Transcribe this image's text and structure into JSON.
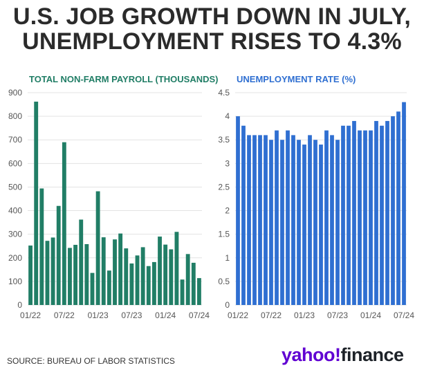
{
  "header": {
    "title_line1": "U.S. JOB GROWTH DOWN IN JULY,",
    "title_line2": "UNEMPLOYMENT RISES TO 4.3%"
  },
  "footer": {
    "source": "SOURCE: BUREAU OF LABOR STATISTICS",
    "logo_yahoo": "yahoo!",
    "logo_finance": "finance"
  },
  "colors": {
    "payroll_bar": "#217e66",
    "unemployment_bar": "#2f6fd1",
    "title": "#2b2b2b",
    "logo_purple": "#6001d2"
  },
  "chart_data": [
    {
      "type": "bar",
      "title": "TOTAL NON-FARM PAYROLL (THOUSANDS)",
      "xlabel": "",
      "ylabel": "",
      "ylim": [
        0,
        900
      ],
      "yticks": [
        "900",
        "800",
        "700",
        "600",
        "500",
        "400",
        "300",
        "200",
        "100",
        "0"
      ],
      "xtick_labels": [
        "01/22",
        "07/22",
        "01/23",
        "07/23",
        "01/24",
        "07/24"
      ],
      "grid": true,
      "categories": [
        "01/22",
        "02/22",
        "03/22",
        "04/22",
        "05/22",
        "06/22",
        "07/22",
        "08/22",
        "09/22",
        "10/22",
        "11/22",
        "12/22",
        "01/23",
        "02/23",
        "03/23",
        "04/23",
        "05/23",
        "06/23",
        "07/23",
        "08/23",
        "09/23",
        "10/23",
        "11/23",
        "12/23",
        "01/24",
        "02/24",
        "03/24",
        "04/24",
        "05/24",
        "06/24",
        "07/24"
      ],
      "values": [
        252,
        862,
        494,
        272,
        286,
        420,
        690,
        242,
        255,
        362,
        258,
        136,
        482,
        287,
        146,
        278,
        303,
        240,
        176,
        210,
        245,
        165,
        182,
        290,
        256,
        236,
        310,
        108,
        216,
        179,
        114
      ]
    },
    {
      "type": "bar",
      "title": "UNEMPLOYMENT RATE (%)",
      "xlabel": "",
      "ylabel": "",
      "ylim": [
        0,
        4.5
      ],
      "yticks": [
        "4.5",
        "4",
        "3.5",
        "3",
        "2.5",
        "2",
        "1.5",
        "1",
        "0.5",
        "0"
      ],
      "xtick_labels": [
        "01/22",
        "07/22",
        "01/23",
        "07/23",
        "01/24",
        "07/24"
      ],
      "grid": true,
      "categories": [
        "01/22",
        "02/22",
        "03/22",
        "04/22",
        "05/22",
        "06/22",
        "07/22",
        "08/22",
        "09/22",
        "10/22",
        "11/22",
        "12/22",
        "01/23",
        "02/23",
        "03/23",
        "04/23",
        "05/23",
        "06/23",
        "07/23",
        "08/23",
        "09/23",
        "10/23",
        "11/23",
        "12/23",
        "01/24",
        "02/24",
        "03/24",
        "04/24",
        "05/24",
        "06/24",
        "07/24"
      ],
      "values": [
        4.0,
        3.8,
        3.6,
        3.6,
        3.6,
        3.6,
        3.5,
        3.7,
        3.5,
        3.7,
        3.6,
        3.5,
        3.4,
        3.6,
        3.5,
        3.4,
        3.7,
        3.6,
        3.5,
        3.8,
        3.8,
        3.9,
        3.7,
        3.7,
        3.7,
        3.9,
        3.8,
        3.9,
        4.0,
        4.1,
        4.3
      ]
    }
  ]
}
